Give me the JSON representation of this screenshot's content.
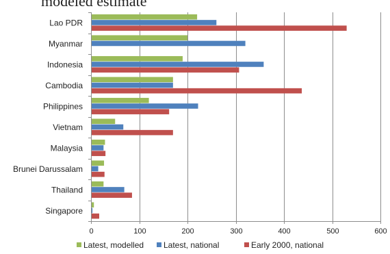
{
  "title_fragment": "modeled estimate",
  "chart_data": {
    "type": "bar",
    "orientation": "horizontal",
    "title": "modeled estimate",
    "categories": [
      "Lao PDR",
      "Myanmar",
      "Indonesia",
      "Cambodia",
      "Philippines",
      "Vietnam",
      "Malaysia",
      "Brunei Darussalam",
      "Thailand",
      "Singapore"
    ],
    "series": [
      {
        "name": "Latest, modelled",
        "color": "#9bbb59",
        "values": [
          220,
          200,
          190,
          170,
          120,
          50,
          29,
          27,
          26,
          6
        ]
      },
      {
        "name": "Latest, national",
        "color": "#4f81bd",
        "values": [
          260,
          320,
          358,
          170,
          222,
          67,
          26,
          15,
          69,
          3
        ]
      },
      {
        "name": "Early 2000, national",
        "color": "#c0504d",
        "values": [
          530,
          null,
          307,
          437,
          162,
          170,
          30,
          28,
          85,
          17
        ]
      }
    ],
    "xlim": [
      0,
      600
    ],
    "xticks": [
      0,
      100,
      200,
      300,
      400,
      500,
      600
    ],
    "grid": "vertical",
    "legend": "bottom"
  }
}
